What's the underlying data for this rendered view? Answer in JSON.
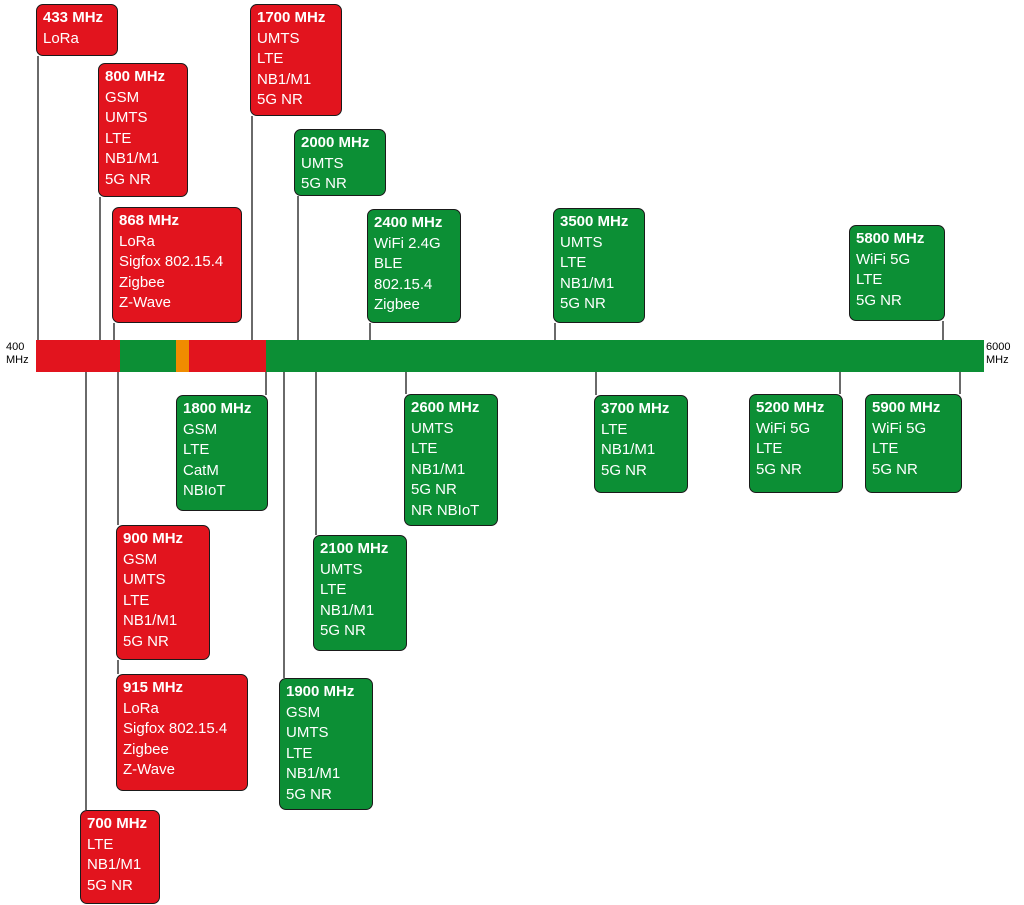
{
  "axis": {
    "min_value": "400",
    "min_unit": "MHz",
    "max_value": "6000",
    "max_unit": "MHz"
  },
  "colors": {
    "licensed": "#e2141e",
    "unlicensed": "#0c8f35",
    "highlight": "#f08c00",
    "line": "#1a1a1a"
  },
  "bands": [
    {
      "freq": "433 MHz",
      "tech": [
        "LoRa"
      ]
    },
    {
      "freq": "800 MHz",
      "tech": [
        "GSM",
        "UMTS",
        "LTE",
        "NB1/M1",
        "5G NR"
      ]
    },
    {
      "freq": "868 MHz",
      "tech": [
        "LoRa",
        "Sigfox 802.15.4",
        "Zigbee",
        "Z-Wave"
      ]
    },
    {
      "freq": "1700 MHz",
      "tech": [
        "UMTS",
        "LTE",
        "NB1/M1",
        "5G NR"
      ]
    },
    {
      "freq": "2000 MHz",
      "tech": [
        "UMTS",
        "5G NR"
      ]
    },
    {
      "freq": "2400 MHz",
      "tech": [
        "WiFi 2.4G",
        "BLE",
        "802.15.4",
        "Zigbee"
      ]
    },
    {
      "freq": "3500 MHz",
      "tech": [
        "UMTS",
        "LTE",
        "NB1/M1",
        "5G NR"
      ]
    },
    {
      "freq": "5800 MHz",
      "tech": [
        "WiFi 5G",
        "LTE",
        "5G NR"
      ]
    },
    {
      "freq": "1800 MHz",
      "tech": [
        "GSM",
        "LTE",
        "CatM",
        "NBIoT"
      ]
    },
    {
      "freq": "2600 MHz",
      "tech": [
        "UMTS",
        "LTE",
        "NB1/M1",
        "5G NR",
        "NR NBIoT"
      ]
    },
    {
      "freq": "3700 MHz",
      "tech": [
        "LTE",
        "NB1/M1",
        "5G NR"
      ]
    },
    {
      "freq": "5200 MHz",
      "tech": [
        "WiFi 5G",
        "LTE",
        "5G NR"
      ]
    },
    {
      "freq": "5900 MHz",
      "tech": [
        "WiFi 5G",
        "LTE",
        "5G NR"
      ]
    },
    {
      "freq": "900 MHz",
      "tech": [
        "GSM",
        "UMTS",
        "LTE",
        "NB1/M1",
        "5G NR"
      ]
    },
    {
      "freq": "915 MHz",
      "tech": [
        "LoRa",
        "Sigfox 802.15.4",
        "Zigbee",
        "Z-Wave"
      ]
    },
    {
      "freq": "2100 MHz",
      "tech": [
        "UMTS",
        "LTE",
        "NB1/M1",
        "5G NR"
      ]
    },
    {
      "freq": "1900 MHz",
      "tech": [
        "GSM",
        "UMTS",
        "LTE",
        "NB1/M1",
        "5G NR"
      ]
    },
    {
      "freq": "700 MHz",
      "tech": [
        "LTE",
        "NB1/M1",
        "5G NR"
      ]
    }
  ]
}
